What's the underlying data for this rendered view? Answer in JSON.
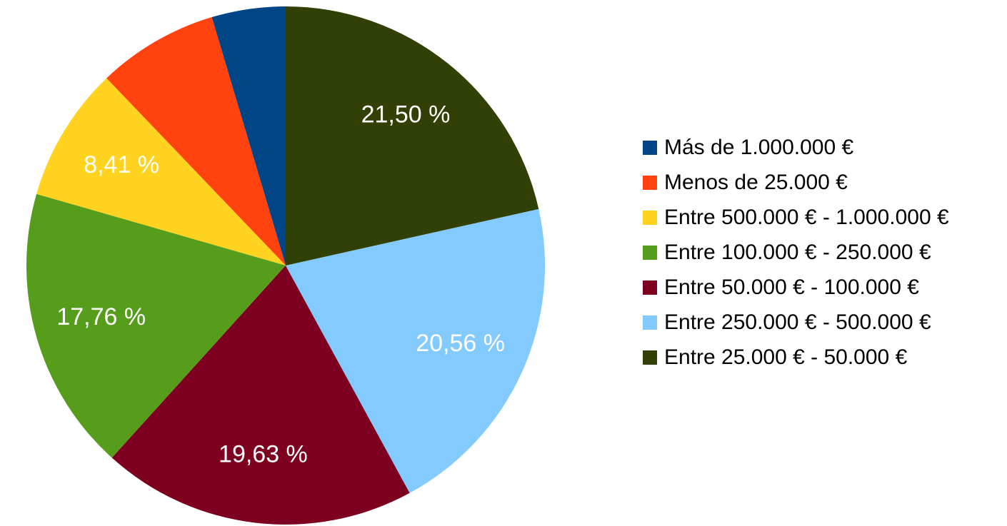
{
  "chart_data": {
    "type": "pie",
    "categories": [
      "Más de 1.000.000 €",
      "Menos de 25.000 €",
      "Entre 500.000 € - 1.000.000 €",
      "Entre 100.000 € - 250.000 €",
      "Entre 50.000 € - 100.000 €",
      "Entre 250.000 € - 500.000 €",
      "Entre 25.000 € - 50.000 €"
    ],
    "values": [
      4.6,
      7.54,
      8.41,
      17.76,
      19.63,
      20.56,
      21.5
    ],
    "value_labels": [
      null,
      null,
      "8,41 %",
      "17,76 %",
      "19,63 %",
      "20,56 %",
      "21,50 %"
    ],
    "colors": [
      "#004586",
      "#ff420e",
      "#ffd320",
      "#579d1c",
      "#7e0021",
      "#83caff",
      "#314004"
    ],
    "legend": "right"
  }
}
